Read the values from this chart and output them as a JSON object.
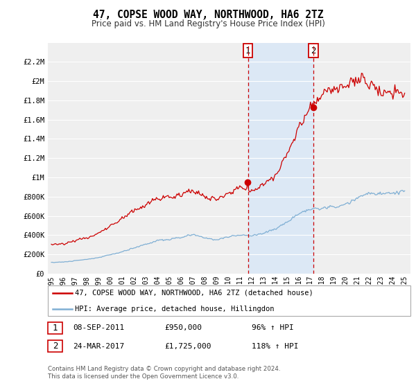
{
  "title": "47, COPSE WOOD WAY, NORTHWOOD, HA6 2TZ",
  "subtitle": "Price paid vs. HM Land Registry's House Price Index (HPI)",
  "legend_label_red": "47, COPSE WOOD WAY, NORTHWOOD, HA6 2TZ (detached house)",
  "legend_label_blue": "HPI: Average price, detached house, Hillingdon",
  "annotation1_date": "08-SEP-2011",
  "annotation1_price": "£950,000",
  "annotation1_hpi": "96% ↑ HPI",
  "annotation2_date": "24-MAR-2017",
  "annotation2_price": "£1,725,000",
  "annotation2_hpi": "118% ↑ HPI",
  "footer": "Contains HM Land Registry data © Crown copyright and database right 2024.\nThis data is licensed under the Open Government Licence v3.0.",
  "sale1_year": 2011.69,
  "sale1_price": 950000,
  "sale2_year": 2017.23,
  "sale2_price": 1725000,
  "ylim": [
    0,
    2400000
  ],
  "xlim_start": 1994.7,
  "xlim_end": 2025.5,
  "background_color": "#ffffff",
  "plot_bg_color": "#efefef",
  "shade_color": "#dce8f5",
  "red_line_color": "#cc0000",
  "blue_line_color": "#7fafd4",
  "grid_color": "#ffffff",
  "vline_color": "#cc0000",
  "ytick_labels": [
    "£0",
    "£200K",
    "£400K",
    "£600K",
    "£800K",
    "£1M",
    "£1.2M",
    "£1.4M",
    "£1.6M",
    "£1.8M",
    "£2M",
    "£2.2M"
  ],
  "ytick_values": [
    0,
    200000,
    400000,
    600000,
    800000,
    1000000,
    1200000,
    1400000,
    1600000,
    1800000,
    2000000,
    2200000
  ],
  "xtick_labels": [
    "1995",
    "1996",
    "1997",
    "1998",
    "1999",
    "2000",
    "2001",
    "2002",
    "2003",
    "2004",
    "2005",
    "2006",
    "2007",
    "2008",
    "2009",
    "2010",
    "2011",
    "2012",
    "2013",
    "2014",
    "2015",
    "2016",
    "2017",
    "2018",
    "2019",
    "2020",
    "2021",
    "2022",
    "2023",
    "2024",
    "2025"
  ]
}
